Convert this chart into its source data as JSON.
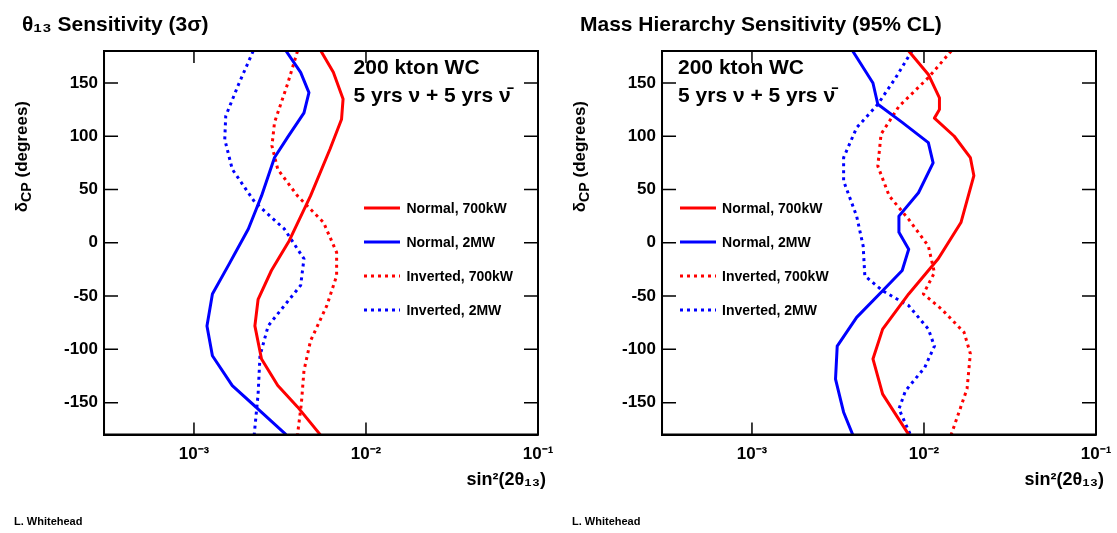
{
  "chart_data": [
    {
      "type": "line",
      "title": "θ₁₃ Sensitivity (3σ)",
      "xlabel": "sin²(2θ₁₃)",
      "ylabel": "δ$_{CP}$ (degrees)",
      "log": "x",
      "grid": false,
      "legend": "right",
      "marker": "none",
      "annotations": [
        "200 kton WC",
        "5 yrs ν + 5 yrs ν̄",
        "L. Whitehead"
      ],
      "xlim": [
        0.0003,
        0.1
      ],
      "xticks": [
        {
          "value": 0.001,
          "label": "10⁻³"
        },
        {
          "value": 0.01,
          "label": "10⁻²"
        },
        {
          "value": 0.1,
          "label": "10⁻¹"
        }
      ],
      "ylim": [
        -180,
        180
      ],
      "yticks": [
        -150,
        -100,
        -50,
        0,
        50,
        100,
        150
      ],
      "series": [
        {
          "name": "Normal, 700kW",
          "color": "#ff0000",
          "line_style": "solid",
          "x": [
            0.00547,
            0.00646,
            0.00736,
            0.00721,
            0.00618,
            0.00476,
            0.00358,
            0.00282,
            0.00236,
            0.00226,
            0.00247,
            0.00307,
            0.004,
            0.00542
          ],
          "values": [
            180,
            160,
            135,
            116,
            88,
            44,
            2,
            -26,
            -53,
            -78,
            -109,
            -134,
            -154,
            -180
          ]
        },
        {
          "name": "Normal, 2MW",
          "color": "#0000ff",
          "line_style": "solid",
          "x": [
            0.00343,
            0.00417,
            0.00466,
            0.00436,
            0.0035,
            0.00294,
            0.00247,
            0.00207,
            0.0016,
            0.00128,
            0.00119,
            0.00128,
            0.00167,
            0.00236,
            0.00343
          ],
          "values": [
            180,
            160,
            141,
            122,
            99,
            80,
            44,
            13,
            -20,
            -48,
            -78,
            -106,
            -134,
            -156,
            -180
          ]
        },
        {
          "name": "Inverted, 700kW",
          "color": "#ff0000",
          "line_style": "dotted",
          "x": [
            0.004,
            0.0035,
            0.00294,
            0.00284,
            0.00307,
            0.004,
            0.00567,
            0.00675,
            0.00675,
            0.00592,
            0.00476,
            0.00436,
            0.00421,
            0.004
          ],
          "values": [
            180,
            149,
            113,
            91,
            69,
            44,
            19,
            -9,
            -31,
            -59,
            -92,
            -120,
            -151,
            -180
          ]
        },
        {
          "name": "Inverted, 2MW",
          "color": "#0000ff",
          "line_style": "dotted",
          "x": [
            0.00221,
            0.00182,
            0.00153,
            0.00151,
            0.00167,
            0.00226,
            0.00335,
            0.00436,
            0.00417,
            0.00335,
            0.0027,
            0.00242,
            0.00236,
            0.00224
          ],
          "values": [
            180,
            149,
            119,
            97,
            69,
            38,
            13,
            -15,
            -40,
            -59,
            -78,
            -106,
            -142,
            -180
          ]
        }
      ]
    },
    {
      "type": "line",
      "title": "Mass Hierarchy Sensitivity (95% CL)",
      "xlabel": "sin²(2θ₁₃)",
      "ylabel": "δ$_{CP}$ (degrees)",
      "log": "x",
      "grid": false,
      "legend": "left",
      "marker": "none",
      "annotations": [
        "200 kton WC",
        "5 yrs ν + 5 yrs ν̄",
        "L. Whitehead"
      ],
      "xlim": [
        0.0003,
        0.1
      ],
      "xticks": [
        {
          "value": 0.001,
          "label": "10⁻³"
        },
        {
          "value": 0.01,
          "label": "10⁻²"
        },
        {
          "value": 0.1,
          "label": "10⁻¹"
        }
      ],
      "ylim": [
        -180,
        180
      ],
      "yticks": [
        -150,
        -100,
        -50,
        0,
        50,
        100,
        150
      ],
      "series": [
        {
          "name": "Normal, 700kW",
          "color": "#ff0000",
          "line_style": "solid",
          "x": [
            0.00815,
            0.0106,
            0.0123,
            0.0123,
            0.0115,
            0.015,
            0.0186,
            0.0195,
            0.0164,
            0.0121,
            0.00815,
            0.00575,
            0.00505,
            0.00575,
            0.00815
          ],
          "values": [
            180,
            158,
            136,
            125,
            117,
            100,
            80,
            63,
            19,
            -15,
            -48,
            -81,
            -109,
            -142,
            -180
          ]
        },
        {
          "name": "Normal, 2MW",
          "color": "#0000ff",
          "line_style": "solid",
          "x": [
            0.00385,
            0.00505,
            0.00539,
            0.00747,
            0.0106,
            0.0113,
            0.00929,
            0.00715,
            0.00715,
            0.00815,
            0.00747,
            0.00575,
            0.00406,
            0.00313,
            0.00306,
            0.00341,
            0.00385
          ],
          "values": [
            180,
            150,
            130,
            113,
            94,
            75,
            47,
            25,
            10,
            -6,
            -26,
            -45,
            -70,
            -97,
            -128,
            -159,
            -180
          ]
        },
        {
          "name": "Inverted, 700kW",
          "color": "#ff0000",
          "line_style": "dotted",
          "x": [
            0.0144,
            0.0106,
            0.00715,
            0.00563,
            0.00539,
            0.00628,
            0.00815,
            0.0106,
            0.0115,
            0.00992,
            0.0126,
            0.0171,
            0.0186,
            0.0178,
            0.0144
          ],
          "values": [
            180,
            155,
            128,
            102,
            72,
            44,
            22,
            -3,
            -28,
            -48,
            -62,
            -84,
            -104,
            -137,
            -180
          ]
        },
        {
          "name": "Inverted, 2MW",
          "color": "#0000ff",
          "line_style": "dotted",
          "x": [
            0.00851,
            0.00685,
            0.00539,
            0.00406,
            0.00341,
            0.00341,
            0.00406,
            0.00443,
            0.00453,
            0.00575,
            0.00815,
            0.0106,
            0.0115,
            0.0101,
            0.0078,
            0.00715,
            0.00833
          ],
          "values": [
            180,
            155,
            130,
            108,
            80,
            58,
            25,
            -3,
            -31,
            -45,
            -59,
            -81,
            -97,
            -117,
            -139,
            -156,
            -180
          ]
        }
      ]
    }
  ]
}
